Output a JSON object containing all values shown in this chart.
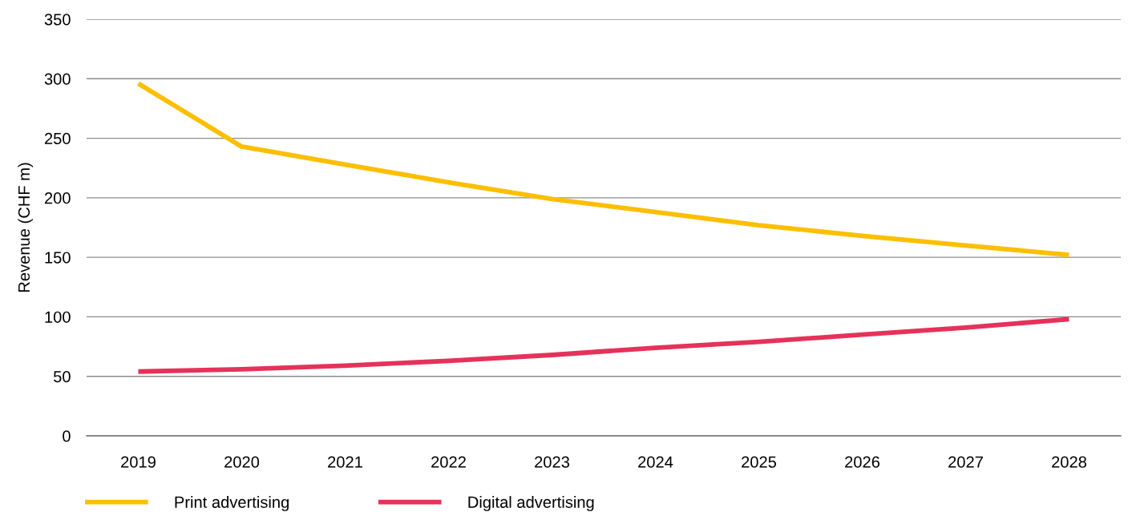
{
  "chart_data": {
    "type": "line",
    "ylabel": "Revenue (CHF m)",
    "categories": [
      "2019",
      "2020",
      "2021",
      "2022",
      "2023",
      "2024",
      "2025",
      "2026",
      "2027",
      "2028"
    ],
    "series": [
      {
        "name": "Print advertising",
        "color": "#fcbf00",
        "values": [
          296,
          243,
          228,
          213,
          199,
          188,
          177,
          168,
          160,
          152
        ]
      },
      {
        "name": "Digital advertising",
        "color": "#e5325a",
        "values": [
          54,
          56,
          59,
          63,
          68,
          74,
          79,
          85,
          91,
          98
        ]
      }
    ],
    "ylim": [
      0,
      350
    ],
    "yticks": [
      0,
      50,
      100,
      150,
      200,
      250,
      300,
      350
    ],
    "grid": "y",
    "legend": "bottom"
  }
}
